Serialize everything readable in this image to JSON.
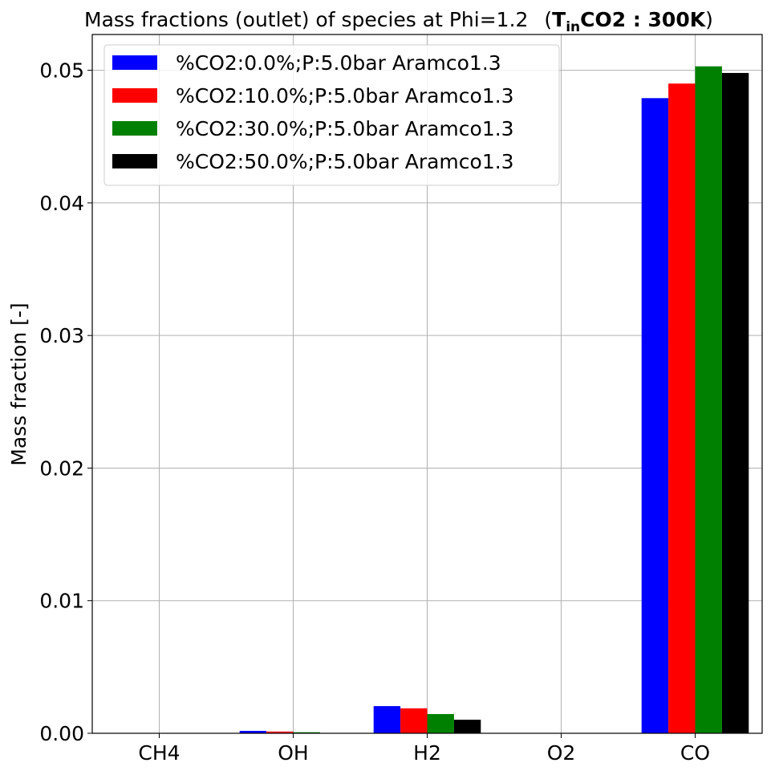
{
  "chart_data": {
    "type": "bar",
    "title": "Mass fractions (outlet) of species at Phi=1.2",
    "title_suffix": {
      "open": "(",
      "main": "T",
      "sub": "in",
      "rest": "CO2 : 300K",
      "close": ")"
    },
    "xlabel": "",
    "ylabel": "Mass fraction [-]",
    "categories": [
      "CH4",
      "OH",
      "H2",
      "O2",
      "CO"
    ],
    "ylim": [
      0,
      0.0527
    ],
    "yticks": [
      {
        "value": 0.0,
        "label": "0.00"
      },
      {
        "value": 0.01,
        "label": "0.01"
      },
      {
        "value": 0.02,
        "label": "0.02"
      },
      {
        "value": 0.03,
        "label": "0.03"
      },
      {
        "value": 0.04,
        "label": "0.04"
      },
      {
        "value": 0.05,
        "label": "0.05"
      }
    ],
    "grid": true,
    "legend_position": "top-left",
    "series": [
      {
        "name": "%CO2:0.0%;P:5.0bar Aramco1.3",
        "color": "#0000ff",
        "values": [
          0.0,
          0.00018,
          0.00205,
          0.0,
          0.0479
        ]
      },
      {
        "name": "%CO2:10.0%;P:5.0bar Aramco1.3",
        "color": "#ff0000",
        "values": [
          0.0,
          0.00013,
          0.00188,
          0.0,
          0.049
        ]
      },
      {
        "name": "%CO2:30.0%;P:5.0bar Aramco1.3",
        "color": "#008000",
        "values": [
          0.0,
          8e-05,
          0.00145,
          0.0,
          0.0503
        ]
      },
      {
        "name": "%CO2:50.0%;P:5.0bar Aramco1.3",
        "color": "#000000",
        "values": [
          0.0,
          3e-05,
          0.00102,
          0.0,
          0.0498
        ]
      }
    ]
  }
}
